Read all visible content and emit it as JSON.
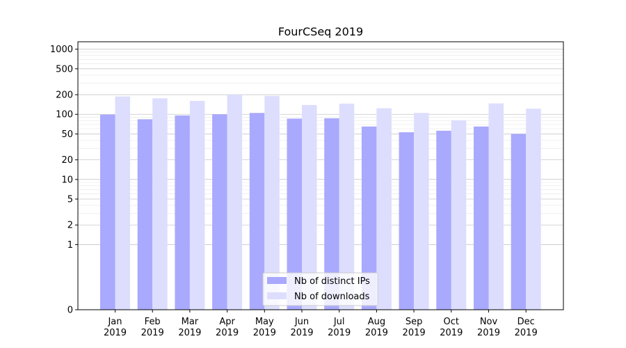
{
  "chart_data": {
    "type": "bar",
    "title": "FourCSeq 2019",
    "xlabel": "",
    "ylabel": "",
    "y_scale": "symlog",
    "ylim": [
      0,
      1300
    ],
    "y_ticks": [
      0,
      1,
      2,
      5,
      10,
      20,
      50,
      100,
      200,
      500,
      1000
    ],
    "y_tick_labels": [
      "0",
      "1",
      "2",
      "5",
      "10",
      "20",
      "50",
      "100",
      "200",
      "500",
      "1000"
    ],
    "grid": "horizontal",
    "legend_position": "bottom-center",
    "categories": [
      "Jan\n2019",
      "Feb\n2019",
      "Mar\n2019",
      "Apr\n2019",
      "May\n2019",
      "Jun\n2019",
      "Jul\n2019",
      "Aug\n2019",
      "Sep\n2019",
      "Oct\n2019",
      "Nov\n2019",
      "Dec\n2019"
    ],
    "series": [
      {
        "name": "Nb of distinct IPs",
        "color": "#a9a9fe",
        "values": [
          99,
          84,
          96,
          100,
          105,
          86,
          87,
          65,
          53,
          56,
          65,
          50
        ]
      },
      {
        "name": "Nb of downloads",
        "color": "#ddddfe",
        "values": [
          188,
          176,
          161,
          200,
          192,
          139,
          146,
          124,
          105,
          81,
          147,
          122
        ]
      }
    ]
  }
}
